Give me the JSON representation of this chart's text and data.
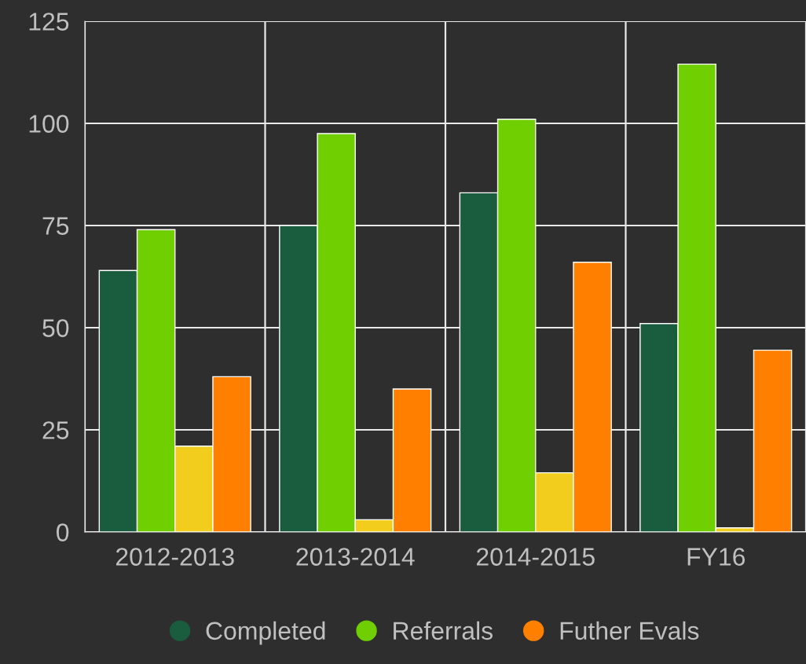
{
  "chart_data": {
    "type": "bar",
    "categories": [
      "2012-2013",
      "2013-2014",
      "2014-2015",
      "FY16"
    ],
    "series": [
      {
        "name": "Completed",
        "color": "#1a5c3e",
        "values": [
          64,
          75,
          83,
          51
        ]
      },
      {
        "name": "Referrals",
        "color": "#6fcf00",
        "values": [
          74,
          97.5,
          101,
          114.5
        ]
      },
      {
        "color": "#f2cd1e",
        "values": [
          21,
          3,
          14.5,
          1
        ]
      },
      {
        "name": "Futher Evals",
        "color": "#ff8000",
        "values": [
          38,
          35,
          66,
          44.5
        ]
      }
    ],
    "ylim": [
      0,
      125
    ],
    "yticks": [
      0,
      25,
      50,
      75,
      100,
      125
    ],
    "grid": true,
    "legend": "bottom"
  }
}
